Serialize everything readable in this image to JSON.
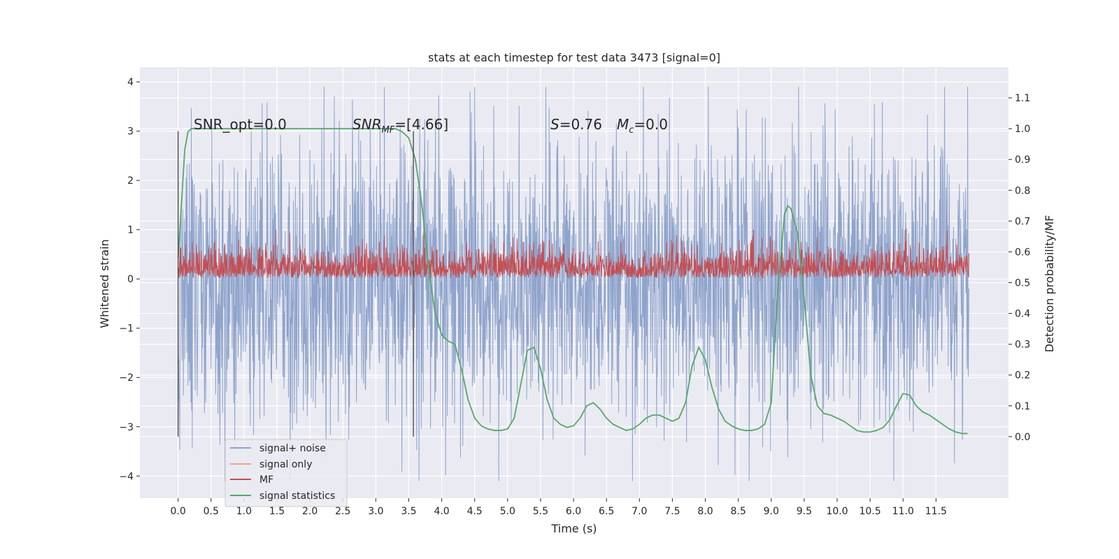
{
  "chart_data": {
    "type": "line",
    "title": "stats at each timestep for test data 3473 [signal=0]",
    "xlabel": "Time (s)",
    "ylabel_left": "Whitened strain",
    "ylabel_right": "Detection probability/MF",
    "xlim": [
      -0.58,
      12.6
    ],
    "ylim_left": [
      -4.45,
      4.3
    ],
    "ylim_right": [
      -0.2,
      1.2
    ],
    "x_ticks": [
      0.0,
      0.5,
      1.0,
      1.5,
      2.0,
      2.5,
      3.0,
      3.5,
      4.0,
      4.5,
      5.0,
      5.5,
      6.0,
      6.5,
      7.0,
      7.5,
      8.0,
      8.5,
      9.0,
      9.5,
      10.0,
      10.5,
      11.0,
      11.5
    ],
    "x_tick_labels": [
      "0.0",
      "0.5",
      "1.0",
      "1.5",
      "2.0",
      "2.5",
      "3.0",
      "3.5",
      "4.0",
      "4.5",
      "5.0",
      "5.5",
      "6.0",
      "6.5",
      "7.0",
      "7.5",
      "8.0",
      "8.5",
      "9.0",
      "9.5",
      "10.0",
      "10.5",
      "11.0",
      "11.5"
    ],
    "y_left_ticks": [
      -4,
      -3,
      -2,
      -1,
      0,
      1,
      2,
      3,
      4
    ],
    "y_left_tick_labels": [
      "−4",
      "−3",
      "−2",
      "−1",
      "0",
      "1",
      "2",
      "3",
      "4"
    ],
    "y_right_ticks": [
      0.0,
      0.1,
      0.2,
      0.3,
      0.4,
      0.5,
      0.6,
      0.7,
      0.8,
      0.9,
      1.0,
      1.1
    ],
    "y_right_tick_labels": [
      "0.0",
      "0.1",
      "0.2",
      "0.3",
      "0.4",
      "0.5",
      "0.6",
      "0.7",
      "0.8",
      "0.9",
      "1.0",
      "1.1"
    ],
    "grid": true,
    "legend_position": "lower-left",
    "annotations": {
      "snr_opt": "SNR_opt=0.0",
      "snr_mf_italic": "SNR",
      "snr_mf_sub": "MF",
      "snr_mf_value": "=[4.66]",
      "s_italic": "S",
      "s_value": "=0.76",
      "mc_italic": "M",
      "mc_sub": "c",
      "mc_value": "=0.0"
    },
    "markers": [
      {
        "x": 0.0,
        "y_range": [
          -3.2,
          3.0
        ]
      },
      {
        "x": 3.57,
        "y_range": [
          -3.2,
          3.0
        ]
      }
    ],
    "strain_trace": {
      "t_start": 0.0,
      "t_end": 12.0,
      "typical_amplitude": 2.0,
      "max": 3.9,
      "min": -4.1
    },
    "mf_trace": {
      "t_start": 0.0,
      "t_end": 12.0,
      "baseline": 0.02,
      "typical_max": 0.55,
      "peak": 1.0
    },
    "series": [
      {
        "name": "signal+ noise",
        "color": "#8fa4cc"
      },
      {
        "name": "signal only",
        "color": "#e8a58c"
      },
      {
        "name": "MF",
        "color": "#c44e52"
      },
      {
        "name": "signal statistics",
        "color": "#55a868",
        "axis": "right",
        "x": [
          0.0,
          0.05,
          0.1,
          0.15,
          0.2,
          0.3,
          0.5,
          1.0,
          2.0,
          3.0,
          3.3,
          3.4,
          3.5,
          3.6,
          3.7,
          3.8,
          3.9,
          4.0,
          4.1,
          4.2,
          4.3,
          4.4,
          4.5,
          4.6,
          4.7,
          4.8,
          4.9,
          5.0,
          5.1,
          5.2,
          5.3,
          5.4,
          5.5,
          5.6,
          5.7,
          5.8,
          5.9,
          6.0,
          6.1,
          6.2,
          6.3,
          6.4,
          6.5,
          6.6,
          6.7,
          6.8,
          6.9,
          7.0,
          7.1,
          7.2,
          7.3,
          7.4,
          7.5,
          7.6,
          7.7,
          7.8,
          7.9,
          8.0,
          8.1,
          8.2,
          8.3,
          8.4,
          8.5,
          8.6,
          8.7,
          8.8,
          8.9,
          9.0,
          9.1,
          9.2,
          9.25,
          9.3,
          9.4,
          9.5,
          9.6,
          9.7,
          9.8,
          9.9,
          10.0,
          10.1,
          10.2,
          10.3,
          10.4,
          10.5,
          10.6,
          10.7,
          10.8,
          10.9,
          11.0,
          11.1,
          11.2,
          11.3,
          11.4,
          11.5,
          11.6,
          11.7,
          11.8,
          11.9,
          11.98
        ],
        "y": [
          0.58,
          0.75,
          0.93,
          0.99,
          1.0,
          1.0,
          1.0,
          1.0,
          1.0,
          1.0,
          1.0,
          0.99,
          0.97,
          0.9,
          0.75,
          0.55,
          0.4,
          0.33,
          0.31,
          0.3,
          0.22,
          0.12,
          0.06,
          0.035,
          0.025,
          0.02,
          0.02,
          0.025,
          0.06,
          0.17,
          0.28,
          0.29,
          0.22,
          0.12,
          0.06,
          0.04,
          0.03,
          0.035,
          0.06,
          0.1,
          0.11,
          0.09,
          0.06,
          0.04,
          0.03,
          0.02,
          0.025,
          0.04,
          0.06,
          0.07,
          0.07,
          0.06,
          0.05,
          0.06,
          0.11,
          0.23,
          0.29,
          0.25,
          0.16,
          0.09,
          0.05,
          0.035,
          0.025,
          0.02,
          0.02,
          0.025,
          0.04,
          0.11,
          0.48,
          0.72,
          0.75,
          0.74,
          0.66,
          0.45,
          0.2,
          0.1,
          0.075,
          0.07,
          0.06,
          0.05,
          0.035,
          0.02,
          0.015,
          0.015,
          0.02,
          0.03,
          0.055,
          0.1,
          0.14,
          0.135,
          0.1,
          0.08,
          0.07,
          0.055,
          0.04,
          0.025,
          0.015,
          0.01,
          0.01
        ]
      }
    ]
  }
}
